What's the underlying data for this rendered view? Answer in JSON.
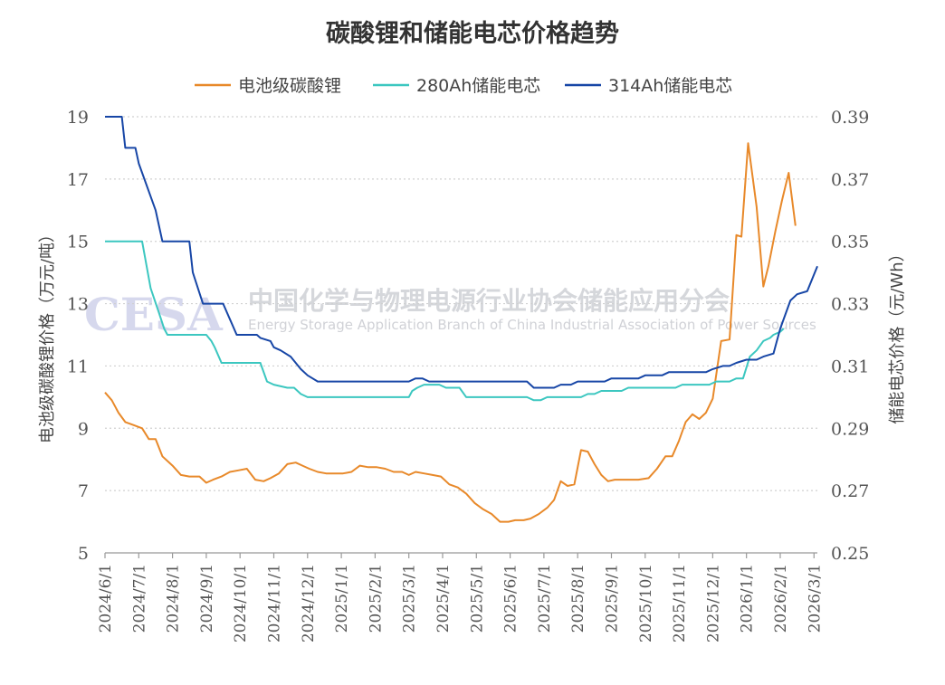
{
  "chart_data": {
    "type": "line",
    "title": "碳酸锂和储能电芯价格趋势",
    "y_left": {
      "label": "电池级碳酸锂价格（万元/吨）",
      "range": [
        5,
        19
      ],
      "ticks": [
        "19",
        "17",
        "15",
        "13",
        "11",
        "9",
        "7",
        "5"
      ],
      "tick_values": [
        19,
        17,
        15,
        13,
        11,
        9,
        7,
        5
      ]
    },
    "y_right": {
      "label": "储能电芯价格（元/Wh）",
      "range": [
        0.25,
        0.39
      ],
      "ticks": [
        "0.39",
        "0.37",
        "0.35",
        "0.33",
        "0.31",
        "0.29",
        "0.27",
        "0.25"
      ],
      "tick_values": [
        0.39,
        0.37,
        0.35,
        0.33,
        0.31,
        0.29,
        0.27,
        0.25
      ]
    },
    "x_range": [
      0,
      21.1
    ],
    "x_ticks": [
      "2024/6/1",
      "2024/7/1",
      "2024/8/1",
      "2024/9/1",
      "2024/10/1",
      "2024/11/1",
      "2024/12/1",
      "2025/1/1",
      "2025/2/1",
      "2025/3/1",
      "2025/4/1",
      "2025/5/1",
      "2025/6/1",
      "2025/7/1",
      "2025/8/1",
      "2025/9/1",
      "2025/10/1",
      "2025/11/1",
      "2025/12/1",
      "2026/1/1",
      "2026/2/1",
      "2026/3/1"
    ],
    "x_tick_values": [
      0,
      1,
      2,
      3,
      4,
      5,
      6,
      7,
      8,
      9,
      10,
      11,
      12,
      13,
      14,
      15,
      16,
      17,
      18,
      19,
      20,
      21
    ],
    "legend": {
      "position": "top"
    },
    "grid": {
      "horizontal": true,
      "style": "dotted"
    },
    "series": [
      {
        "name": "电池级碳酸锂",
        "axis": "left",
        "color": "#e8892a",
        "x": [
          0,
          0.2,
          0.4,
          0.6,
          0.85,
          1.1,
          1.3,
          1.5,
          1.7,
          2.0,
          2.25,
          2.5,
          2.8,
          3.0,
          3.2,
          3.45,
          3.7,
          3.95,
          4.2,
          4.45,
          4.7,
          4.9,
          5.15,
          5.4,
          5.65,
          5.85,
          6.05,
          6.3,
          6.55,
          6.8,
          7.05,
          7.3,
          7.55,
          7.8,
          8.05,
          8.3,
          8.55,
          8.8,
          9.0,
          9.2,
          9.45,
          9.7,
          9.95,
          10.2,
          10.45,
          10.7,
          10.95,
          11.2,
          11.45,
          11.7,
          11.95,
          12.15,
          12.4,
          12.6,
          12.85,
          13.1,
          13.3,
          13.5,
          13.7,
          13.9,
          14.1,
          14.3,
          14.5,
          14.7,
          14.9,
          15.1,
          15.3,
          15.5,
          15.8,
          16.1,
          16.35,
          16.6,
          16.8,
          17.0,
          17.2,
          17.4,
          17.6,
          17.8,
          18.0,
          18.25,
          18.5,
          18.7,
          18.85,
          19.05,
          19.3,
          19.5,
          19.65,
          19.85,
          20.05,
          20.25,
          20.45,
          20.65,
          20.85,
          21.05,
          21.1
        ],
        "y": [
          10.15,
          9.9,
          9.5,
          9.2,
          9.1,
          9.0,
          8.65,
          8.65,
          8.1,
          7.8,
          7.5,
          7.45,
          7.45,
          7.25,
          7.35,
          7.45,
          7.6,
          7.65,
          7.7,
          7.35,
          7.3,
          7.4,
          7.55,
          7.85,
          7.9,
          7.8,
          7.7,
          7.6,
          7.55,
          7.55,
          7.55,
          7.6,
          7.8,
          7.75,
          7.75,
          7.7,
          7.6,
          7.6,
          7.5,
          7.6,
          7.55,
          7.5,
          7.45,
          7.2,
          7.1,
          6.9,
          6.6,
          6.4,
          6.25,
          6.0,
          6.0,
          6.05,
          6.05,
          6.1,
          6.25,
          6.45,
          6.7,
          7.3,
          7.15,
          7.2,
          8.3,
          8.25,
          7.85,
          7.5,
          7.3,
          7.35,
          7.35,
          7.35,
          7.35,
          7.4,
          7.7,
          8.1,
          8.1,
          8.6,
          9.2,
          9.45,
          9.3,
          9.5,
          9.95,
          11.8,
          11.85,
          15.2,
          15.15,
          18.15,
          16.1,
          13.55,
          14.2,
          15.3,
          16.3,
          17.2,
          15.5,
          null,
          null,
          null,
          null
        ]
      },
      {
        "name": "280Ah储能电芯",
        "axis": "right",
        "color": "#3cc7c0",
        "x": [
          0,
          0.5,
          1.1,
          1.35,
          1.6,
          1.75,
          1.85,
          2.0,
          2.5,
          3.0,
          3.15,
          3.25,
          3.45,
          3.7,
          4.0,
          4.2,
          4.4,
          4.6,
          4.8,
          5.0,
          5.4,
          5.6,
          5.8,
          6.0,
          6.25,
          6.5,
          7.0,
          7.5,
          8.0,
          8.5,
          9.0,
          9.1,
          9.25,
          9.45,
          9.7,
          9.9,
          10.1,
          10.3,
          10.5,
          10.7,
          10.9,
          11.1,
          11.3,
          11.5,
          11.7,
          11.9,
          12.1,
          12.3,
          12.5,
          12.7,
          12.9,
          13.1,
          13.3,
          13.5,
          13.7,
          13.9,
          14.1,
          14.3,
          14.5,
          14.7,
          14.9,
          15.1,
          15.3,
          15.5,
          15.7,
          15.9,
          16.1,
          16.3,
          16.5,
          16.7,
          16.9,
          17.1,
          17.3,
          17.5,
          17.7,
          17.9,
          18.1,
          18.3,
          18.5,
          18.7,
          18.9,
          19.1,
          19.3,
          19.5,
          19.7,
          19.8,
          20.0,
          20.1,
          20.3,
          20.5,
          20.7,
          20.9,
          21.1
        ],
        "y": [
          0.35,
          0.35,
          0.35,
          0.335,
          0.327,
          0.322,
          0.32,
          0.32,
          0.32,
          0.32,
          0.318,
          0.316,
          0.311,
          0.311,
          0.311,
          0.311,
          0.311,
          0.311,
          0.305,
          0.304,
          0.303,
          0.303,
          0.301,
          0.3,
          0.3,
          0.3,
          0.3,
          0.3,
          0.3,
          0.3,
          0.3,
          0.302,
          0.303,
          0.304,
          0.304,
          0.304,
          0.303,
          0.303,
          0.303,
          0.3,
          0.3,
          0.3,
          0.3,
          0.3,
          0.3,
          0.3,
          0.3,
          0.3,
          0.3,
          0.299,
          0.299,
          0.3,
          0.3,
          0.3,
          0.3,
          0.3,
          0.3,
          0.301,
          0.301,
          0.302,
          0.302,
          0.302,
          0.302,
          0.303,
          0.303,
          0.303,
          0.303,
          0.303,
          0.303,
          0.303,
          0.303,
          0.304,
          0.304,
          0.304,
          0.304,
          0.304,
          0.305,
          0.305,
          0.305,
          0.306,
          0.306,
          0.313,
          0.315,
          0.318,
          0.319,
          0.32,
          0.321,
          0.322,
          null,
          null,
          null,
          null,
          null
        ],
        "_note": ""
      },
      {
        "name": "314Ah储能电芯",
        "axis": "right",
        "color": "#1746a6",
        "x": [
          0,
          0.5,
          0.6,
          0.9,
          1.0,
          1.5,
          1.7,
          2.0,
          2.5,
          2.6,
          2.9,
          3.0,
          3.5,
          3.9,
          4.0,
          4.1,
          4.5,
          4.6,
          4.9,
          5.0,
          5.2,
          5.5,
          5.8,
          6.0,
          6.3,
          6.5,
          6.7,
          7.0,
          7.5,
          8.0,
          8.5,
          9.0,
          9.2,
          9.4,
          9.6,
          9.8,
          10.0,
          10.3,
          10.5,
          10.7,
          11.0,
          11.5,
          12.0,
          12.5,
          12.7,
          13.0,
          13.3,
          13.5,
          13.8,
          14.0,
          14.3,
          14.5,
          14.8,
          15.0,
          15.3,
          15.5,
          15.8,
          16.0,
          16.3,
          16.5,
          16.7,
          17.0,
          17.3,
          17.5,
          17.8,
          18.0,
          18.3,
          18.5,
          18.7,
          19.0,
          19.3,
          19.5,
          19.8,
          20.0,
          20.3,
          20.5,
          20.8,
          21.1
        ],
        "y": [
          0.39,
          0.39,
          0.38,
          0.38,
          0.375,
          0.36,
          0.35,
          0.35,
          0.35,
          0.34,
          0.33,
          0.33,
          0.33,
          0.32,
          0.32,
          0.32,
          0.32,
          0.319,
          0.318,
          0.316,
          0.315,
          0.313,
          0.309,
          0.307,
          0.305,
          0.305,
          0.305,
          0.305,
          0.305,
          0.305,
          0.305,
          0.305,
          0.306,
          0.306,
          0.305,
          0.305,
          0.305,
          0.305,
          0.305,
          0.305,
          0.305,
          0.305,
          0.305,
          0.305,
          0.303,
          0.303,
          0.303,
          0.304,
          0.304,
          0.305,
          0.305,
          0.305,
          0.305,
          0.306,
          0.306,
          0.306,
          0.306,
          0.307,
          0.307,
          0.307,
          0.308,
          0.308,
          0.308,
          0.308,
          0.308,
          0.309,
          0.31,
          0.31,
          0.311,
          0.312,
          0.312,
          0.313,
          0.314,
          0.322,
          0.331,
          0.333,
          0.334,
          0.342
        ]
      }
    ]
  },
  "watermark": {
    "logo": "CESA",
    "org_cn": "中国化学与物理电源行业协会储能应用分会",
    "org_en": "Energy Storage Application Branch of China Industrial Association of Power Sources"
  },
  "colors": {
    "grid": "#d0d0d0",
    "axis": "#999999"
  }
}
